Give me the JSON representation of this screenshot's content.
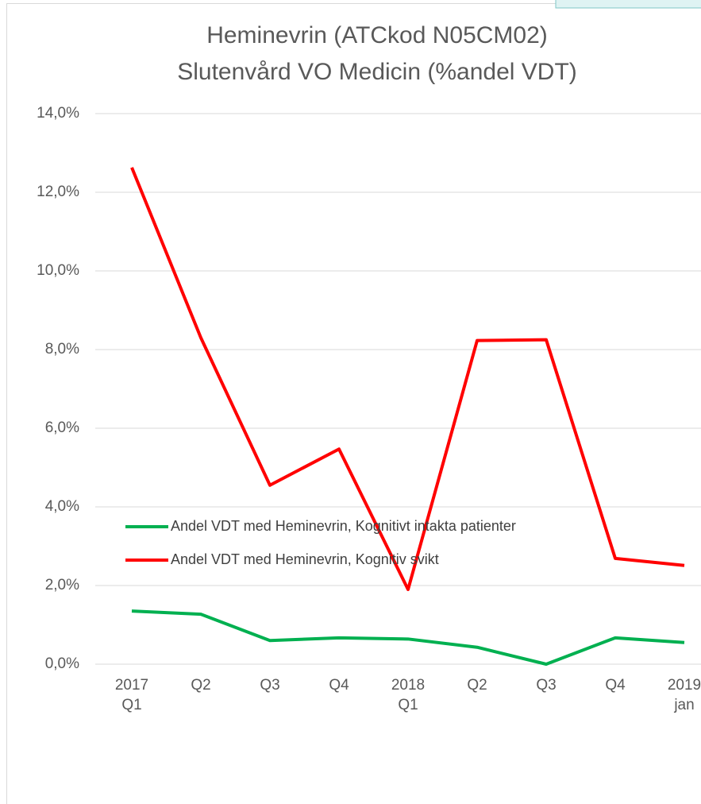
{
  "chart_data": {
    "type": "line",
    "title": "Heminevrin (ATCkod N05CM02)",
    "subtitle": "Slutenvård VO Medicin (%andel VDT)",
    "categories": [
      "2017\nQ1",
      "Q2",
      "Q3",
      "Q4",
      "2018\nQ1",
      "Q2",
      "Q3",
      "Q4",
      "2019\njan"
    ],
    "series": [
      {
        "name": "Andel VDT med Heminevrin, Kognitivt intakta patienter",
        "color": "#00b050",
        "values": [
          1.35,
          1.27,
          0.6,
          0.67,
          0.64,
          0.43,
          0.0,
          0.67,
          0.55
        ]
      },
      {
        "name": "Andel VDT med Heminevrin, Kognitiv svikt",
        "color": "#ff0000",
        "values": [
          12.63,
          8.3,
          4.55,
          5.47,
          1.9,
          8.23,
          8.25,
          2.69,
          2.51
        ]
      }
    ],
    "ylim": [
      0,
      14
    ],
    "yticks": [
      {
        "value": 0,
        "label": "0,0%"
      },
      {
        "value": 2,
        "label": "2,0%"
      },
      {
        "value": 4,
        "label": "4,0%"
      },
      {
        "value": 6,
        "label": "6,0%"
      },
      {
        "value": 8,
        "label": "8,0%"
      },
      {
        "value": 10,
        "label": "10,0%"
      },
      {
        "value": 12,
        "label": "12,0%"
      },
      {
        "value": 14,
        "label": "14,0%"
      }
    ],
    "grid": true,
    "legend": "bottom"
  }
}
